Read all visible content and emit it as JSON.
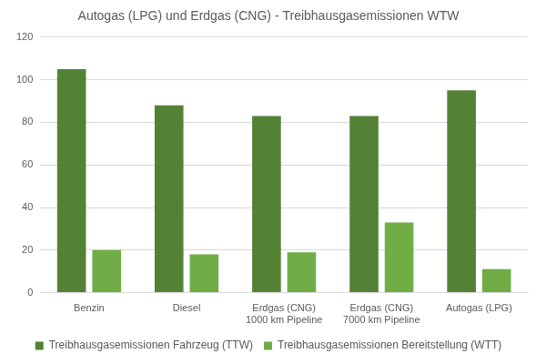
{
  "chart_data": {
    "type": "bar",
    "title": "Autogas (LPG) und Erdgas (CNG) - Treibhausgasemissionen WTW",
    "categories": [
      "Benzin",
      "Diesel",
      "Erdgas (CNG)\n1000 km Pipeline",
      "Erdgas (CNG)\n7000 km Pipeline",
      "Autogas (LPG)"
    ],
    "series": [
      {
        "name": "Treibhausgasemissionen Fahrzeug (TTW)",
        "color": "#548235",
        "values": [
          105,
          88,
          83,
          83,
          95
        ]
      },
      {
        "name": "Treibhausgasemissionen Bereitstellung (WTT)",
        "color": "#70ad47",
        "values": [
          20,
          18,
          19,
          33,
          11
        ]
      }
    ],
    "ylim": [
      0,
      120
    ],
    "yticks": [
      0,
      20,
      40,
      60,
      80,
      100,
      120
    ],
    "grid": true,
    "legend": "bottom"
  }
}
